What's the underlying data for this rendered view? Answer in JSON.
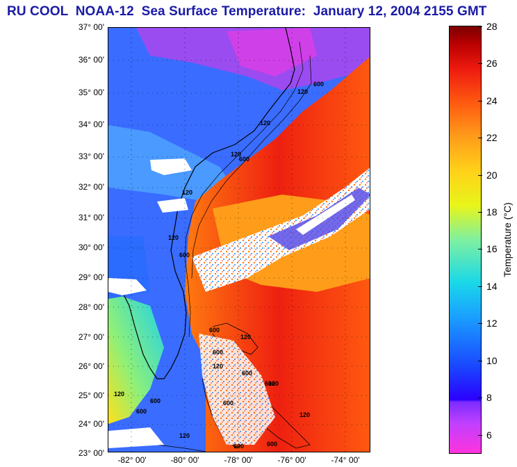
{
  "title": "RU COOL  NOAA-12  Sea Surface Temperature:  January 12, 2004 2155 GMT",
  "map": {
    "lat_labels": [
      "37° 00'",
      "36° 00'",
      "35° 00'",
      "34° 00'",
      "33° 00'",
      "32° 00'",
      "31° 00'",
      "30° 00'",
      "29° 00'",
      "28° 00'",
      "27° 00'",
      "26° 00'",
      "25° 00'",
      "24° 00'",
      "23° 00'"
    ],
    "lon_labels": [
      "-82° 00'",
      "-80° 00'",
      "-78° 00'",
      "-76° 00'",
      "-74° 00'"
    ],
    "lat_range": [
      23,
      37
    ],
    "lon_range": [
      -83.2,
      -72.8
    ],
    "isobath_labels": [
      "120",
      "600",
      "120",
      "600",
      "120",
      "600",
      "120",
      "120",
      "600",
      "600",
      "120",
      "600",
      "120",
      "600",
      "120",
      "600",
      "600",
      "120",
      "600",
      "120",
      "600",
      "600",
      "120"
    ],
    "colors": {
      "land": "#e0e0f0",
      "cold": "#3355ff",
      "cool": "#1ad8e8",
      "warm": "#ff9d1a",
      "hot": "#ee2010",
      "cloud": "#ffffff",
      "coast": "#000000"
    }
  },
  "colorbar": {
    "title": "Temperature (°C)",
    "ticks": [
      "28",
      "26",
      "24",
      "22",
      "20",
      "18",
      "16",
      "14",
      "12",
      "10",
      "8",
      "6"
    ],
    "range": [
      5,
      28
    ]
  }
}
